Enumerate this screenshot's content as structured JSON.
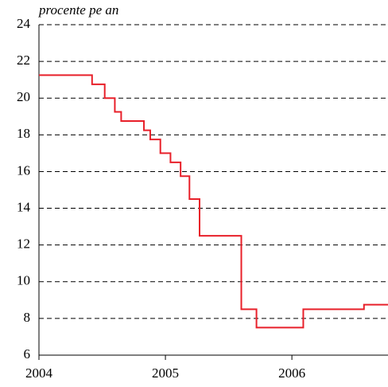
{
  "chart_data": {
    "type": "line",
    "step": "post",
    "y_label": "procente pe an",
    "color": "#e8202a",
    "x": [
      2004,
      2004.42,
      2004.52,
      2004.6,
      2004.65,
      2004.83,
      2004.88,
      2004.96,
      2005.04,
      2005.12,
      2005.19,
      2005.27,
      2005.6,
      2005.72,
      2006.09,
      2006.57,
      2006.76
    ],
    "values": [
      21.25,
      20.75,
      20,
      19.25,
      18.75,
      18.25,
      17.75,
      17,
      16.5,
      15.75,
      14.5,
      12.5,
      8.5,
      7.5,
      8.5,
      8.75,
      8.75
    ],
    "xlim": [
      2004,
      2006.76
    ],
    "xticks": [
      2004,
      2005,
      2006
    ],
    "ylim": [
      6,
      24
    ],
    "yticks": [
      6,
      8,
      10,
      12,
      14,
      16,
      18,
      20,
      22,
      24
    ],
    "grid": true
  }
}
